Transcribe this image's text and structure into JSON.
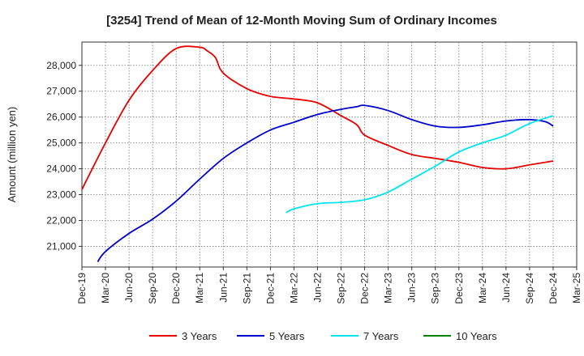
{
  "chart_data": {
    "type": "line",
    "title": "[3254]  Trend of Mean of 12-Month Moving Sum of Ordinary Incomes",
    "xlabel": "",
    "ylabel": "Amount (million yen)",
    "x_tick_labels": [
      "Dec-19",
      "Mar-20",
      "Jun-20",
      "Sep-20",
      "Dec-20",
      "Mar-21",
      "Jun-21",
      "Sep-21",
      "Dec-21",
      "Mar-22",
      "Jun-22",
      "Sep-22",
      "Dec-22",
      "Mar-23",
      "Jun-23",
      "Sep-23",
      "Dec-23",
      "Mar-24",
      "Jun-24",
      "Sep-24",
      "Dec-24",
      "Mar-25"
    ],
    "y_ticks": [
      21000,
      22000,
      23000,
      24000,
      25000,
      26000,
      27000,
      28000
    ],
    "y_tick_labels": [
      "21,000",
      "22,000",
      "23,000",
      "24,000",
      "25,000",
      "26,000",
      "27,000",
      "28,000"
    ],
    "ylim": [
      20200,
      28900
    ],
    "x_unit": "months since Dec-19",
    "xlim": [
      0,
      63
    ],
    "grid": true,
    "legend_position": "bottom",
    "series": [
      {
        "name": "3 Years",
        "color": "#e60000",
        "x": [
          0,
          3,
          6,
          9,
          12,
          15,
          16,
          17,
          18,
          21,
          24,
          27,
          30,
          33,
          35,
          36,
          39,
          42,
          45,
          48,
          51,
          54,
          57,
          60
        ],
        "values": [
          23200,
          25000,
          26650,
          27800,
          28650,
          28700,
          28550,
          28300,
          27700,
          27100,
          26800,
          26700,
          26550,
          26050,
          25700,
          25300,
          24900,
          24550,
          24400,
          24250,
          24050,
          24000,
          24150,
          24300
        ]
      },
      {
        "name": "5 Years",
        "color": "#0000cc",
        "x": [
          2,
          3,
          6,
          9,
          12,
          15,
          18,
          21,
          24,
          27,
          30,
          33,
          35,
          36,
          39,
          42,
          45,
          48,
          51,
          54,
          57,
          59,
          60
        ],
        "values": [
          20400,
          20800,
          21500,
          22050,
          22750,
          23600,
          24400,
          25000,
          25500,
          25800,
          26100,
          26300,
          26400,
          26450,
          26250,
          25900,
          25650,
          25600,
          25700,
          25850,
          25900,
          25820,
          25650
        ]
      },
      {
        "name": "7 Years",
        "color": "#00e5ee",
        "x": [
          26,
          27,
          30,
          33,
          36,
          39,
          42,
          45,
          48,
          51,
          54,
          57,
          60
        ],
        "values": [
          22300,
          22450,
          22650,
          22700,
          22800,
          23100,
          23600,
          24100,
          24650,
          25000,
          25300,
          25750,
          26050
        ]
      },
      {
        "name": "10 Years",
        "color": "#008000",
        "x": [],
        "values": []
      }
    ]
  }
}
